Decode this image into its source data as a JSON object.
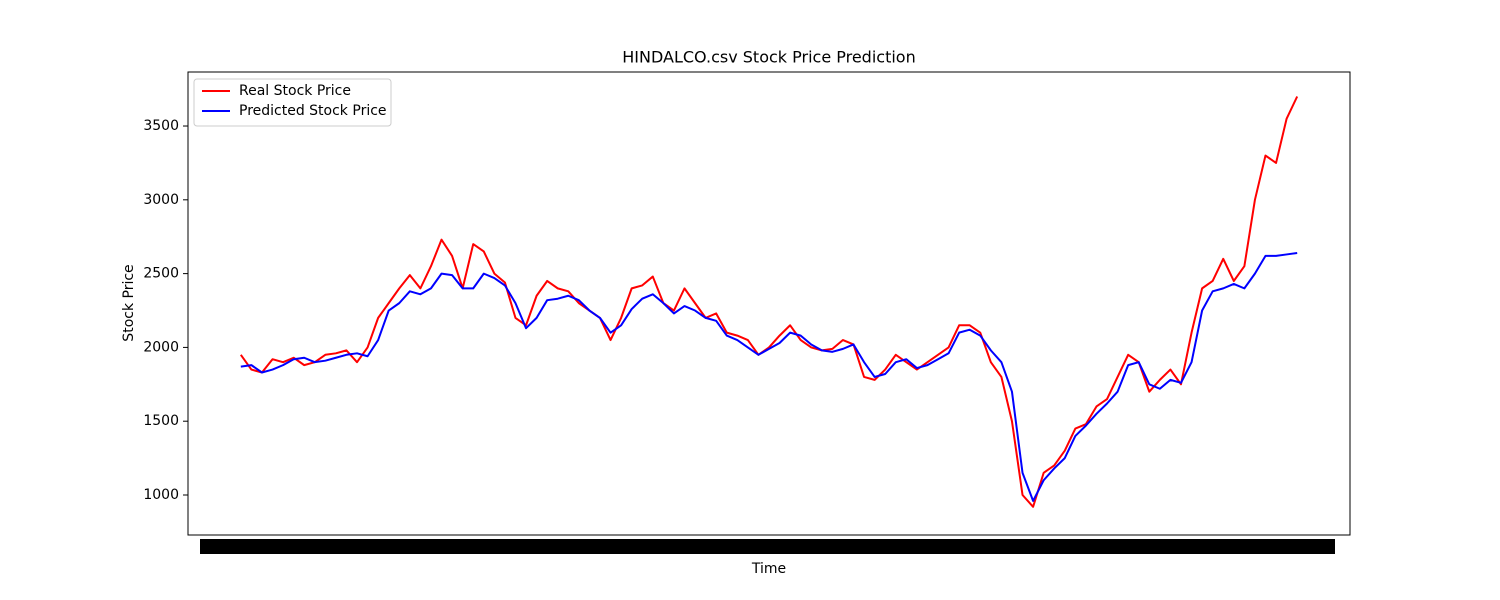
{
  "chart_data": {
    "type": "line",
    "title": "HINDALCO.csv Stock Price Prediction",
    "x_label": "Time",
    "y_label": "Stock Price",
    "ylim": [
      729,
      3866
    ],
    "yticks": [
      1000,
      1500,
      2000,
      2500,
      3000,
      3500
    ],
    "grid": false,
    "legend": "upper-left",
    "series": [
      {
        "name": "Real Stock Price",
        "color": "#ff0000",
        "values": [
          1950,
          1850,
          1830,
          1920,
          1900,
          1930,
          1880,
          1900,
          1950,
          1960,
          1980,
          1900,
          2000,
          2200,
          2300,
          2400,
          2490,
          2400,
          2550,
          2730,
          2620,
          2400,
          2700,
          2650,
          2500,
          2440,
          2200,
          2150,
          2350,
          2450,
          2400,
          2380,
          2300,
          2250,
          2200,
          2050,
          2200,
          2400,
          2420,
          2480,
          2300,
          2250,
          2400,
          2300,
          2200,
          2230,
          2100,
          2080,
          2050,
          1950,
          2000,
          2080,
          2150,
          2050,
          2000,
          1980,
          1990,
          2050,
          2020,
          1800,
          1780,
          1850,
          1950,
          1900,
          1850,
          1900,
          1950,
          2000,
          2150,
          2150,
          2100,
          1900,
          1800,
          1500,
          1000,
          920,
          1150,
          1200,
          1300,
          1450,
          1480,
          1600,
          1650,
          1800,
          1950,
          1900,
          1700,
          1780,
          1850,
          1750,
          2100,
          2400,
          2450,
          2600,
          2450,
          2550,
          3000,
          3300,
          3250,
          3550,
          3700
        ]
      },
      {
        "name": "Predicted Stock Price",
        "color": "#0000ff",
        "values": [
          1870,
          1880,
          1830,
          1850,
          1880,
          1920,
          1930,
          1900,
          1910,
          1930,
          1950,
          1960,
          1940,
          2050,
          2250,
          2300,
          2380,
          2360,
          2400,
          2500,
          2490,
          2400,
          2400,
          2500,
          2470,
          2420,
          2300,
          2130,
          2200,
          2320,
          2330,
          2350,
          2320,
          2250,
          2200,
          2100,
          2150,
          2260,
          2330,
          2360,
          2300,
          2230,
          2280,
          2250,
          2200,
          2180,
          2080,
          2050,
          2000,
          1950,
          1990,
          2030,
          2100,
          2080,
          2020,
          1980,
          1970,
          1990,
          2020,
          1900,
          1800,
          1820,
          1900,
          1920,
          1860,
          1880,
          1920,
          1960,
          2100,
          2120,
          2080,
          1980,
          1900,
          1700,
          1150,
          960,
          1100,
          1180,
          1250,
          1400,
          1470,
          1550,
          1620,
          1700,
          1880,
          1900,
          1750,
          1720,
          1780,
          1760,
          1900,
          2250,
          2380,
          2400,
          2430,
          2400,
          2500,
          2620,
          2620,
          2630,
          2640
        ]
      }
    ]
  }
}
